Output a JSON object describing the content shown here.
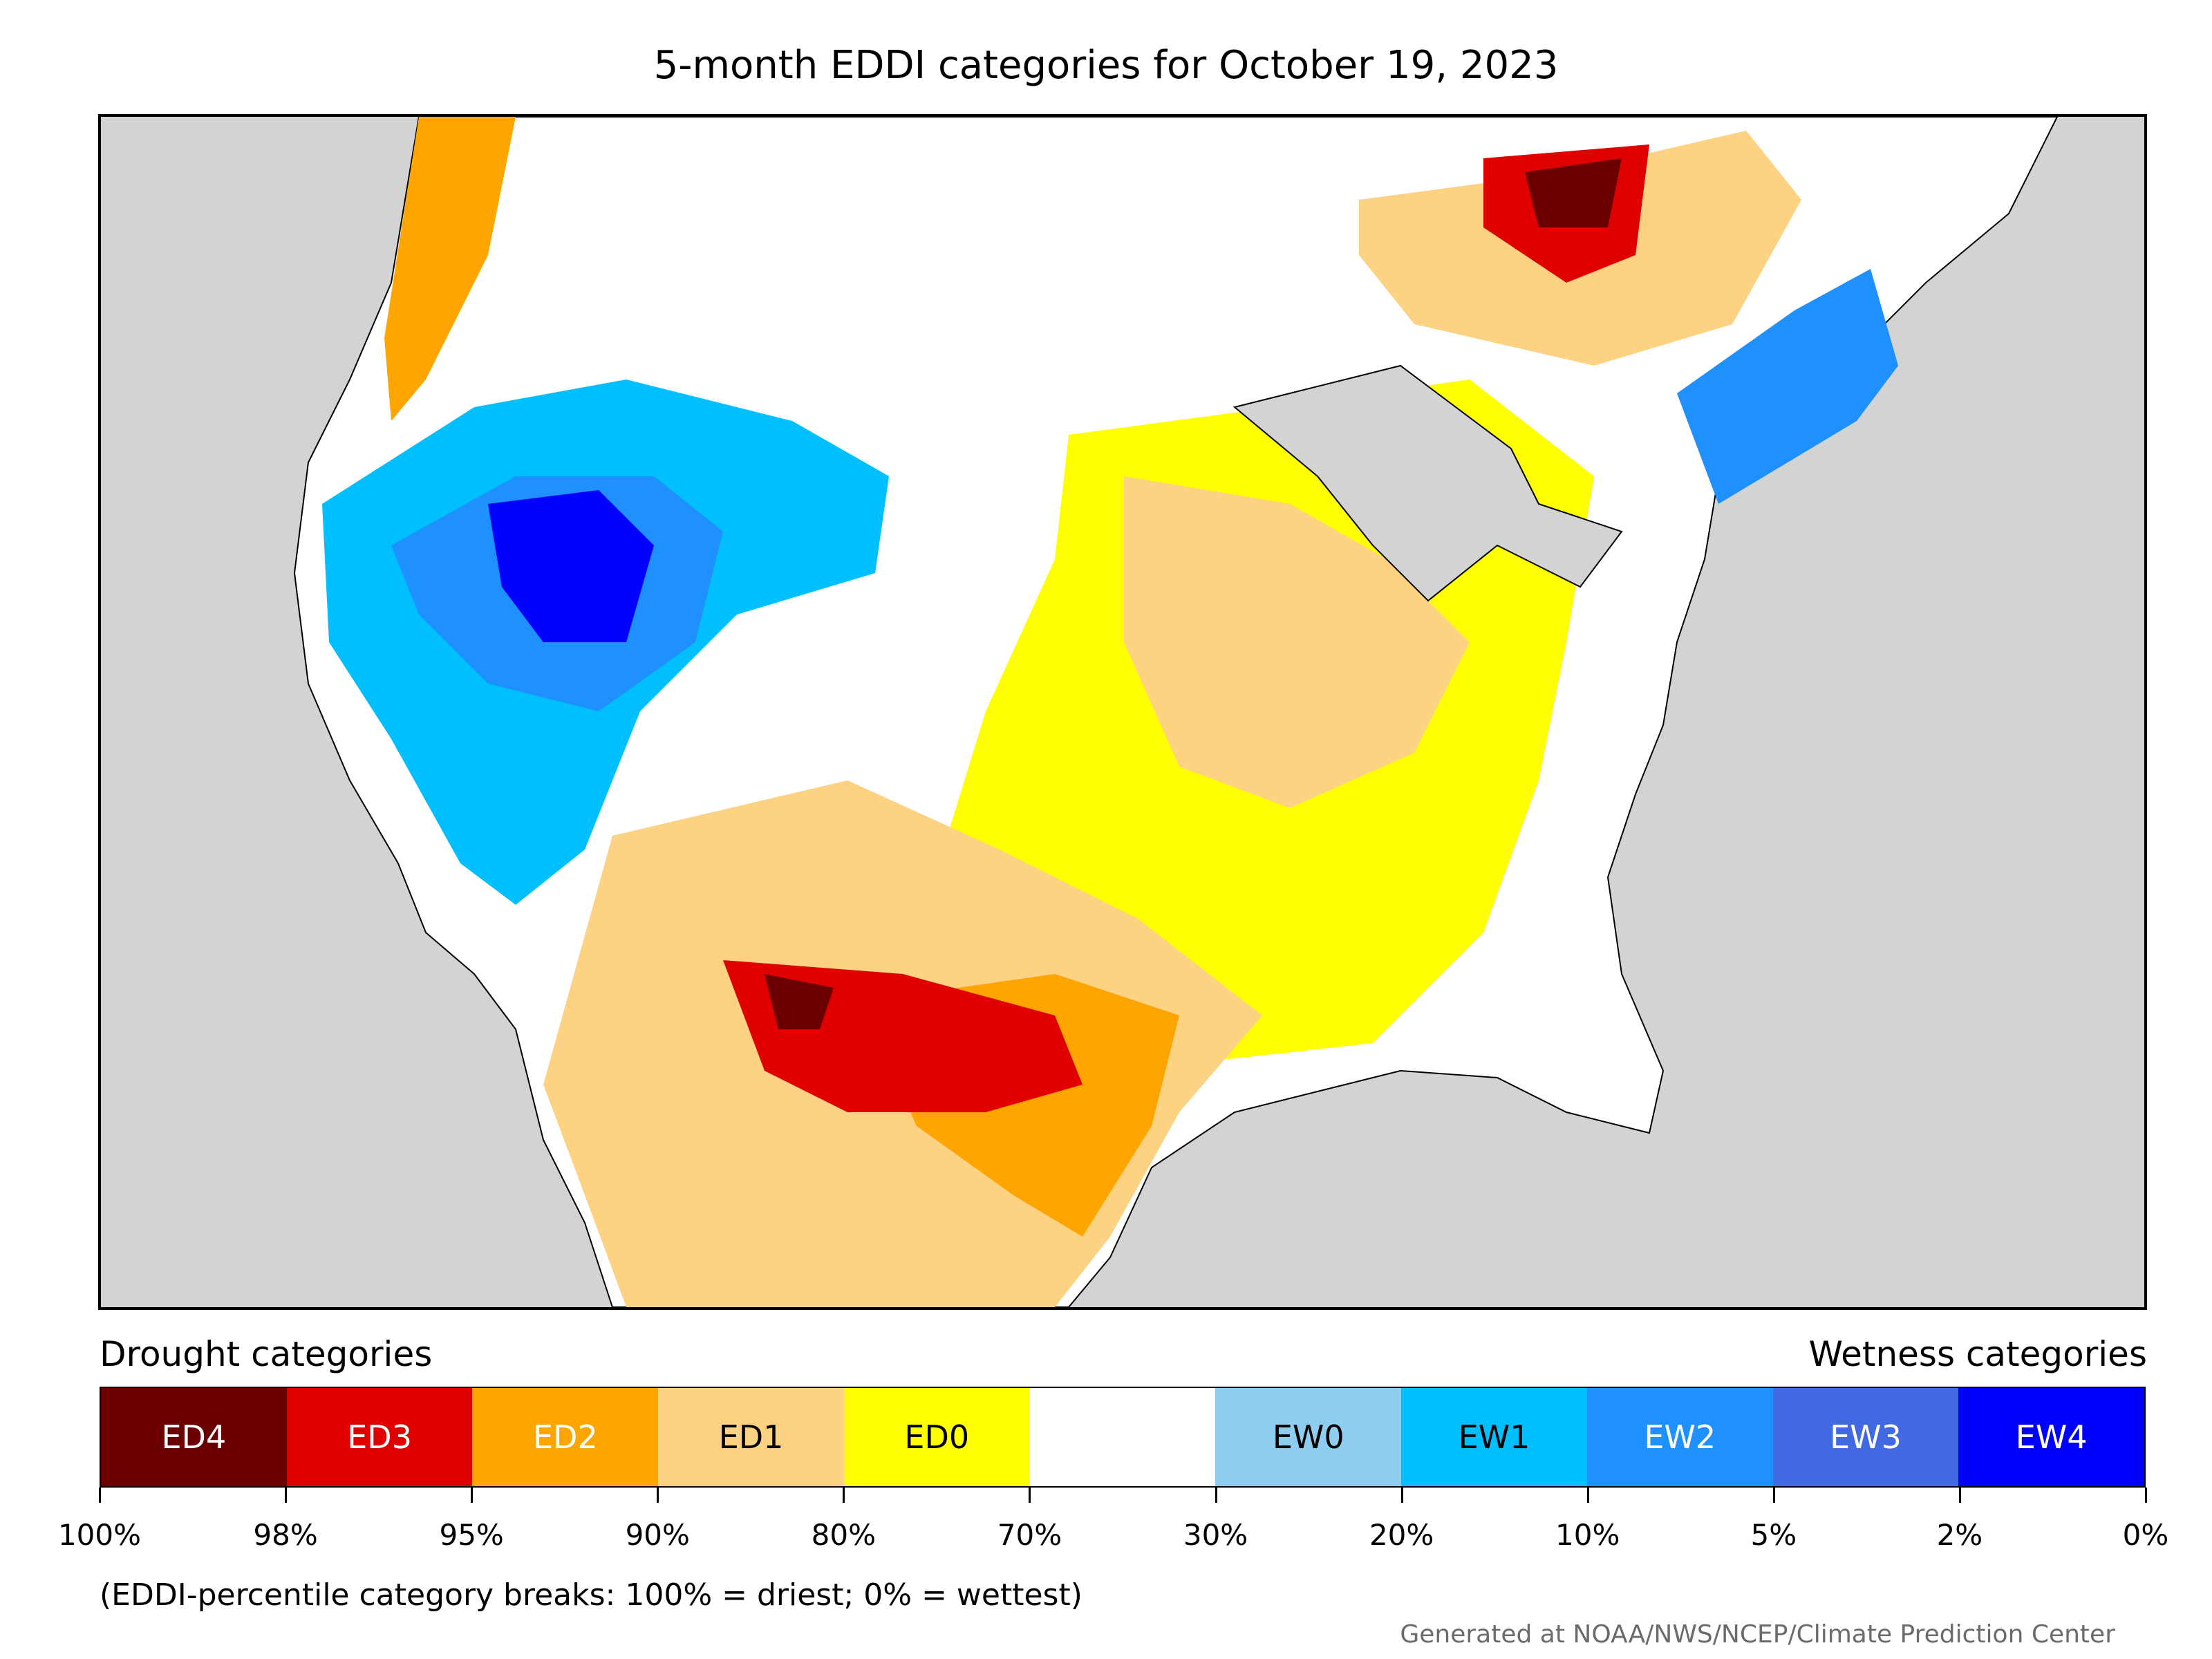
{
  "title": "5-month EDDI categories for October 19, 2023",
  "legend": {
    "drought_heading": "Drought categories",
    "wetness_heading": "Wetness categories",
    "categories": [
      {
        "label": "ED4",
        "color": "#6b0000",
        "text_color": "#ffffff"
      },
      {
        "label": "ED3",
        "color": "#e00000",
        "text_color": "#ffffff"
      },
      {
        "label": "ED2",
        "color": "#ffa500",
        "text_color": "#ffffff"
      },
      {
        "label": "ED1",
        "color": "#fdd283",
        "text_color": "#000000"
      },
      {
        "label": "ED0",
        "color": "#ffff00",
        "text_color": "#000000"
      },
      {
        "label": "",
        "color": "#ffffff",
        "text_color": "#000000"
      },
      {
        "label": "EW0",
        "color": "#8ecdef",
        "text_color": "#000000"
      },
      {
        "label": "EW1",
        "color": "#00bfff",
        "text_color": "#000000"
      },
      {
        "label": "EW2",
        "color": "#1e90ff",
        "text_color": "#ffffff"
      },
      {
        "label": "EW3",
        "color": "#4169e1",
        "text_color": "#ffffff"
      },
      {
        "label": "EW4",
        "color": "#0000ff",
        "text_color": "#ffffff"
      }
    ],
    "breaks": [
      "100%",
      "98%",
      "95%",
      "90%",
      "80%",
      "70%",
      "30%",
      "20%",
      "10%",
      "5%",
      "2%",
      "0%"
    ]
  },
  "note": "(EDDI-percentile category breaks: 100% = driest; 0% = wettest)",
  "credit": "Generated at NOAA/NWS/NCEP/Climate Prediction Center",
  "map": {
    "background_color": "#d3d3d3",
    "land_color": "#ffffff",
    "border_color": "#000000"
  }
}
